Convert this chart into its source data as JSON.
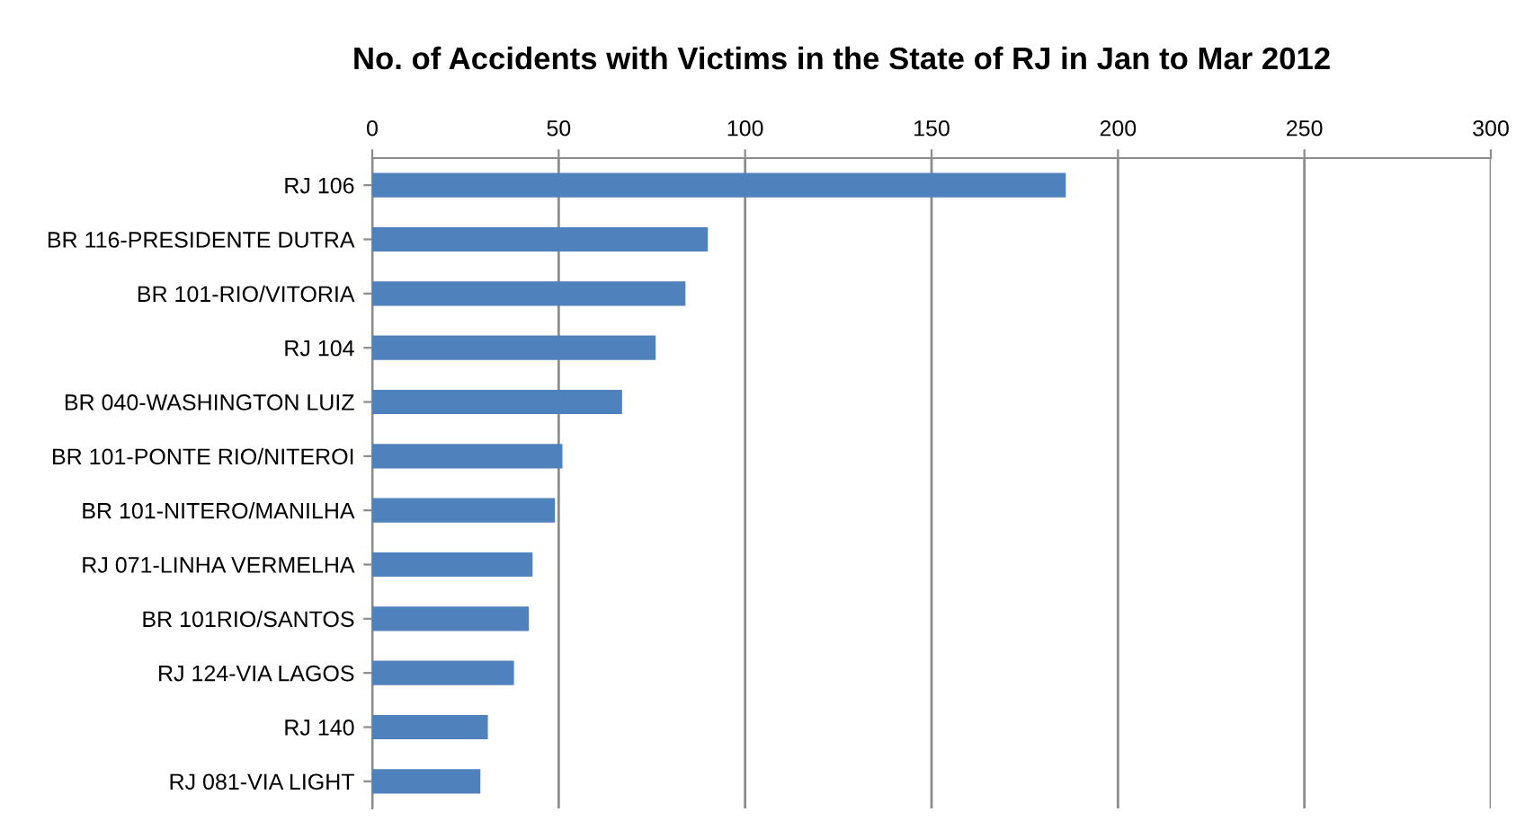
{
  "chart_data": {
    "type": "bar",
    "orientation": "horizontal",
    "title": "No. of Accidents with Victims in the State of RJ in Jan to Mar 2012",
    "categories": [
      "RJ 106",
      "BR 116-PRESIDENTE DUTRA",
      "BR 101-RIO/VITORIA",
      "RJ 104",
      "BR 040-WASHINGTON LUIZ",
      "BR 101-PONTE RIO/NITEROI",
      "BR 101-NITERO/MANILHA",
      "RJ 071-LINHA VERMELHA",
      "BR 101RIO/SANTOS",
      "RJ 124-VIA LAGOS",
      "RJ 140",
      "RJ 081-VIA LIGHT"
    ],
    "values": [
      186,
      90,
      84,
      76,
      67,
      51,
      49,
      43,
      42,
      38,
      31,
      29
    ],
    "color": "#4f81bd",
    "xlim": [
      0,
      300
    ],
    "xticks": [
      0,
      50,
      100,
      150,
      200,
      250,
      300
    ],
    "grid": "x"
  }
}
